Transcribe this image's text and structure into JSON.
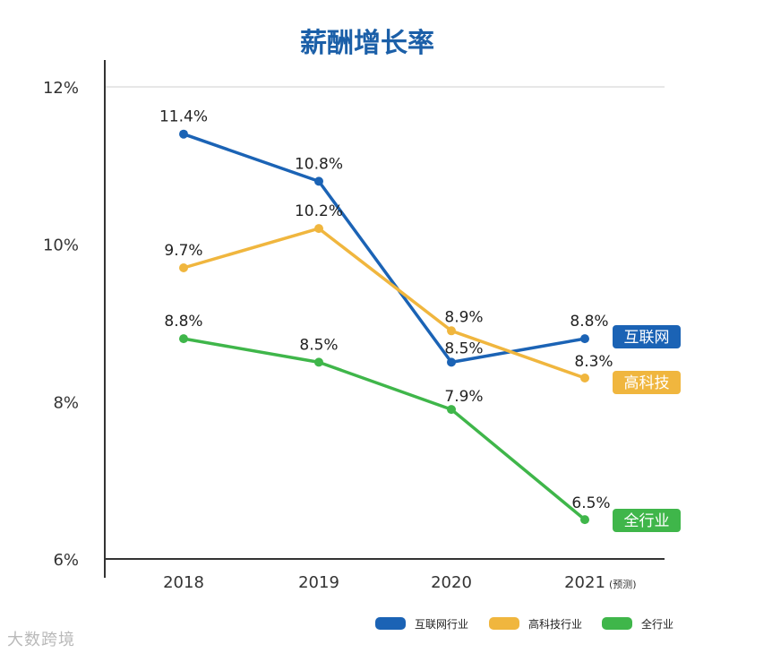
{
  "chart_data": {
    "type": "line",
    "title": "薪酬增长率",
    "categories": [
      "2018",
      "2019",
      "2020",
      "2021"
    ],
    "category_suffix": {
      "2021": "(预测)"
    },
    "ylim": [
      6,
      12
    ],
    "yticks": [
      6,
      8,
      10,
      12
    ],
    "ytick_labels": [
      "6%",
      "8%",
      "10%",
      "12%"
    ],
    "grid": "top line only",
    "legend": "bottom-right",
    "series": [
      {
        "name": "互联网行业",
        "end_label": "互联网",
        "color": "#1b63b5",
        "values": [
          11.4,
          10.8,
          8.5,
          8.8
        ],
        "data_labels": [
          "11.4%",
          "10.8%",
          "8.5%",
          "8.8%"
        ]
      },
      {
        "name": "高科技行业",
        "end_label": "高科技",
        "color": "#f0b63e",
        "values": [
          9.7,
          10.2,
          8.9,
          8.3
        ],
        "data_labels": [
          "9.7%",
          "10.2%",
          "8.9%",
          "8.3%"
        ]
      },
      {
        "name": "全行业",
        "end_label": "全行业",
        "color": "#3fb64a",
        "values": [
          8.8,
          8.5,
          7.9,
          6.5
        ],
        "data_labels": [
          "8.8%",
          "8.5%",
          "7.9%",
          "6.5%"
        ]
      }
    ]
  },
  "watermark": "大数跨境"
}
